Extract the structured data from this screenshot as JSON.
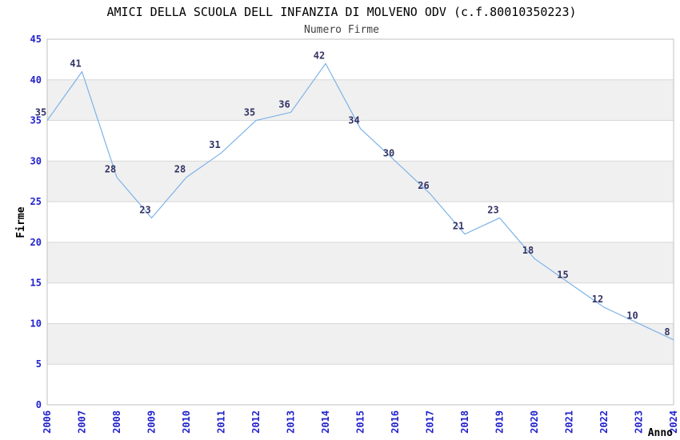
{
  "chart_data": {
    "type": "line",
    "title": "AMICI DELLA SCUOLA DELL INFANZIA DI MOLVENO ODV (c.f.80010350223)",
    "subtitle": "Numero Firme",
    "xlabel": "Anno",
    "ylabel": "Firme",
    "x": [
      2006,
      2007,
      2008,
      2009,
      2010,
      2011,
      2012,
      2013,
      2014,
      2015,
      2016,
      2017,
      2018,
      2019,
      2020,
      2021,
      2022,
      2023,
      2024
    ],
    "values": [
      35,
      41,
      28,
      23,
      28,
      31,
      35,
      36,
      42,
      34,
      30,
      26,
      21,
      23,
      18,
      15,
      12,
      10,
      8
    ],
    "ylim": [
      0,
      45
    ],
    "ytick_step": 5,
    "yticks": [
      0,
      5,
      10,
      15,
      20,
      25,
      30,
      35,
      40,
      45
    ],
    "grid": "horizontal-bands-alternating",
    "band_intervals": [
      [
        5,
        10
      ],
      [
        15,
        20
      ],
      [
        25,
        30
      ],
      [
        35,
        40
      ]
    ],
    "legend": "none",
    "data_labels_shown": true,
    "colors": {
      "line": "#7db3e8",
      "tick_label": "#2222cc",
      "data_label": "#333366",
      "band_fill": "#f0f0f0",
      "gridline": "#d8d8d8",
      "plot_border": "#c0c0c0",
      "title": "#000000",
      "subtitle": "#404040",
      "axis_title": "#000000",
      "background": "#ffffff"
    }
  }
}
